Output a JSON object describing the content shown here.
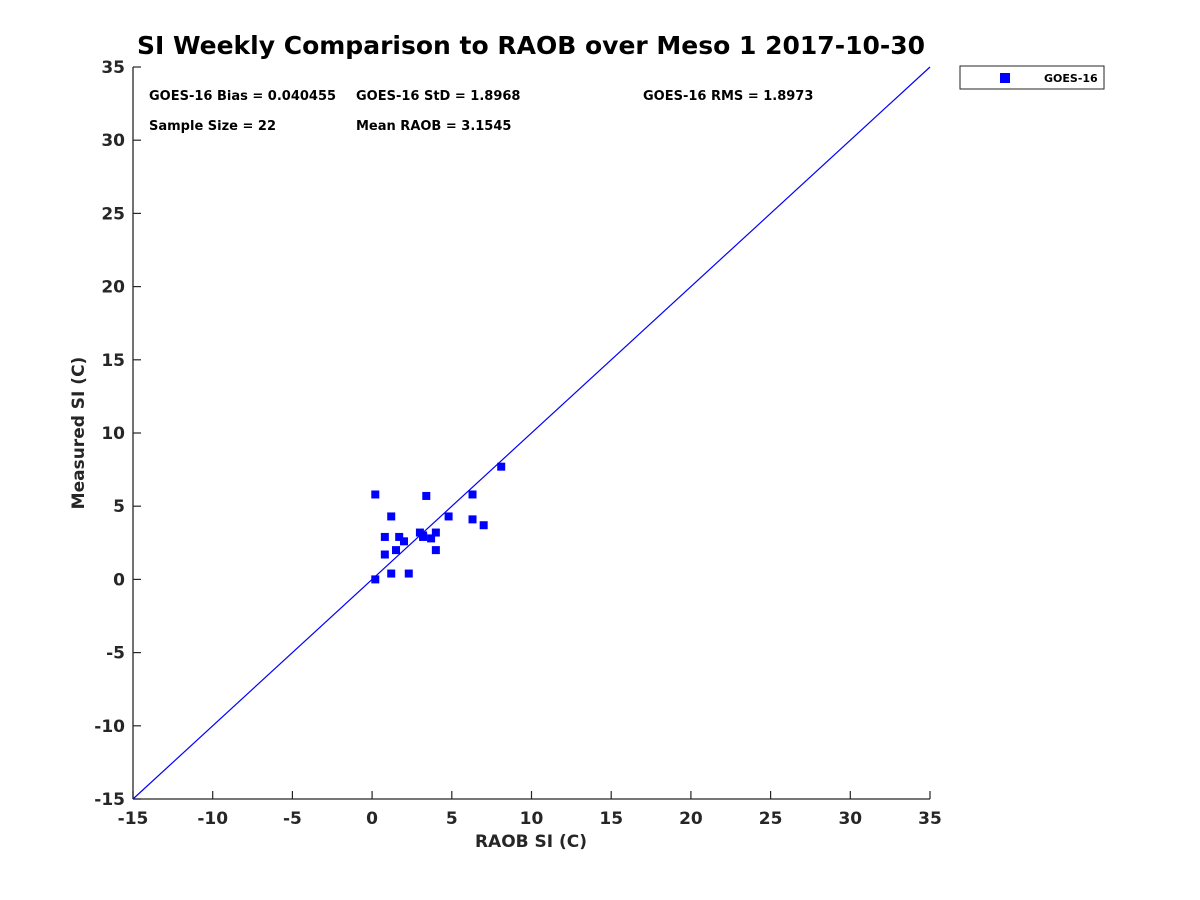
{
  "chart_data": {
    "type": "scatter",
    "title": "SI Weekly Comparison to RAOB over Meso 1 2017-10-30",
    "xlabel": "RAOB SI (C)",
    "ylabel": "Measured SI (C)",
    "xlim": [
      -15,
      35
    ],
    "ylim": [
      -15,
      35
    ],
    "xticks": [
      "-15",
      "-10",
      "-5",
      "0",
      "5",
      "10",
      "15",
      "20",
      "25",
      "30",
      "35"
    ],
    "yticks": [
      "-15",
      "-10",
      "-5",
      "0",
      "5",
      "10",
      "15",
      "20",
      "25",
      "30",
      "35"
    ],
    "reference_line": "y = x",
    "legend": {
      "position": "outside-top-right",
      "entries": [
        "GOES-16"
      ]
    },
    "stats": {
      "bias": "GOES-16 Bias = 0.040455",
      "std": "GOES-16 StD = 1.8968",
      "rms": "GOES-16 RMS = 1.8973",
      "sample_size": "Sample Size = 22",
      "mean_raob": "Mean RAOB = 3.1545"
    },
    "series": [
      {
        "name": "GOES-16",
        "color": "#0000ff",
        "marker": "square",
        "points": [
          [
            0.2,
            5.8
          ],
          [
            0.2,
            0.0
          ],
          [
            0.8,
            2.9
          ],
          [
            0.8,
            1.7
          ],
          [
            1.2,
            4.3
          ],
          [
            1.2,
            0.4
          ],
          [
            1.5,
            2.0
          ],
          [
            1.7,
            2.9
          ],
          [
            2.0,
            2.6
          ],
          [
            2.3,
            0.4
          ],
          [
            3.0,
            3.2
          ],
          [
            3.2,
            2.9
          ],
          [
            3.4,
            5.7
          ],
          [
            3.7,
            2.8
          ],
          [
            4.0,
            3.2
          ],
          [
            4.0,
            2.0
          ],
          [
            4.8,
            4.3
          ],
          [
            6.3,
            5.8
          ],
          [
            6.3,
            4.1
          ],
          [
            7.0,
            3.7
          ],
          [
            8.1,
            7.7
          ],
          [
            3.2,
            3.0
          ]
        ]
      }
    ],
    "colors": {
      "series": "#0000ff",
      "reference_line": "#0000ff",
      "axis": "#262626"
    }
  }
}
